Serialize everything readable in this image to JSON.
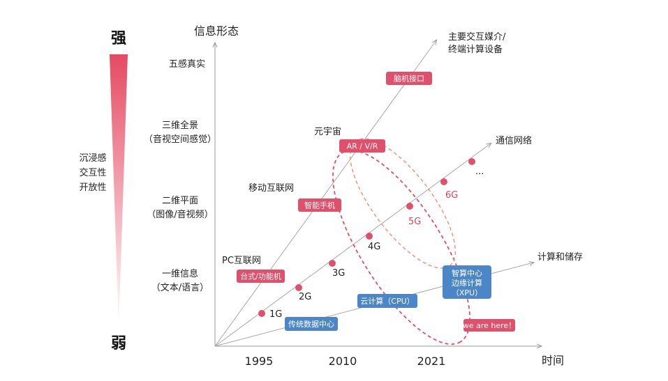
{
  "colors": {
    "red": "#e0506b",
    "blue": "#4a86c8",
    "dot": "#e0506b",
    "axis": "#9a9a9a",
    "gradient_top": "#e64a62",
    "gradient_bottom": "#ffffff"
  },
  "left_scale": {
    "top_label": "强",
    "bottom_label": "弱",
    "side_lines": [
      "沉浸感",
      "交互性",
      "开放性"
    ]
  },
  "axes": {
    "y_title": "信息形态",
    "x_title": "时间",
    "years": [
      "1995",
      "2010",
      "2021"
    ]
  },
  "y_levels": [
    {
      "line1": "五感真实",
      "line2": ""
    },
    {
      "line1": "三维全景",
      "line2": "（音视空间感觉）"
    },
    {
      "line1": "二维平面",
      "line2": "（图像/音视频）"
    },
    {
      "line1": "一维信息",
      "line2": "（文本/语言）"
    }
  ],
  "lines": {
    "top": {
      "label_line1": "主要交互媒介/",
      "label_line2": "终端计算设备"
    },
    "middle": {
      "label": "通信网络"
    },
    "bottom": {
      "label": "计算和储存"
    }
  },
  "era_labels": {
    "pc": "PC互联网",
    "mobile": "移动互联网",
    "meta": "元宇宙"
  },
  "pills": {
    "bci": "脑机接口",
    "ar": "AR / V/R",
    "phone": "智能手机",
    "desktop": "台式/功能机",
    "cloud": "云计算（CPU）",
    "datacenter": "传统数据中心",
    "smart_line1": "智算中心",
    "smart_line2": "边缘计算",
    "smart_line3": "（XPU）",
    "here": "we are here！"
  },
  "generations": [
    "1G",
    "2G",
    "3G",
    "4G",
    "5G",
    "6G"
  ],
  "ellipsis": "..."
}
